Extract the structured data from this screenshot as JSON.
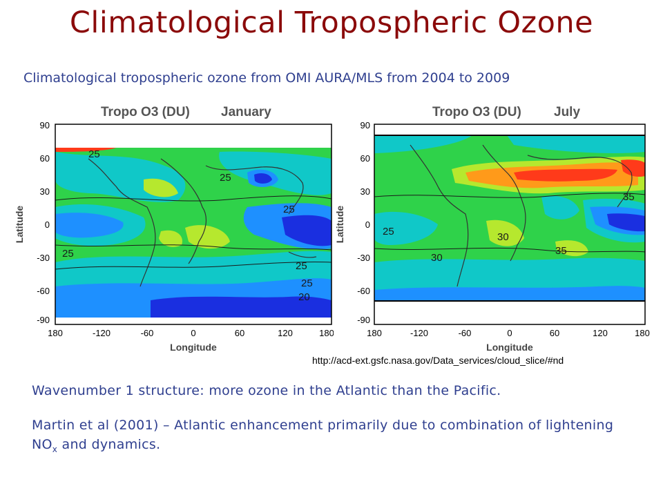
{
  "slide": {
    "title": "Climatological Tropospheric Ozone",
    "subtitle": "Climatological tropospheric ozone from OMI AURA/MLS from 2004 to 2009",
    "source_url": "http://acd-ext.gsfc.nasa.gov/Data_services/cloud_slice/#nd",
    "bullet1": "Wavenumber 1 structure: more ozone in the Atlantic than the Pacific.",
    "bullet2_pre": "Martin et al (2001) – Atlantic enhancement primarily due to combination of lightening NO",
    "bullet2_sub": "x",
    "bullet2_post": " and dynamics."
  },
  "maps": [
    {
      "title_left": "Tropo O3 (DU)",
      "title_right": "January",
      "ylabel": "Latitude",
      "xlabel": "Longitude",
      "yticks": [
        "90",
        "60",
        "30",
        "0",
        "-30",
        "-60",
        "-90"
      ],
      "xticks": [
        "180",
        "-120",
        "-60",
        "0",
        "60",
        "120",
        "180"
      ],
      "contour_labels": [
        "25",
        "25",
        "25",
        "25",
        "25",
        "20",
        "25"
      ]
    },
    {
      "title_left": "Tropo O3 (DU)",
      "title_right": "July",
      "ylabel": "Latitude",
      "xlabel": "Longitude",
      "yticks": [
        "90",
        "60",
        "30",
        "0",
        "-30",
        "-60",
        "-90"
      ],
      "xticks": [
        "180",
        "-120",
        "-60",
        "0",
        "60",
        "120",
        "180"
      ],
      "contour_labels": [
        "25",
        "30",
        "35",
        "30",
        "35"
      ]
    }
  ],
  "colors": {
    "title": "#8b0a0a",
    "text": "#2f3f8f",
    "blue_dark": "#1a2fe0",
    "blue": "#1e90ff",
    "cyan": "#10c8c8",
    "green": "#2fd24a",
    "yellow_green": "#b6e82e",
    "orange": "#ff9a1a",
    "red": "#ff3a1a"
  }
}
